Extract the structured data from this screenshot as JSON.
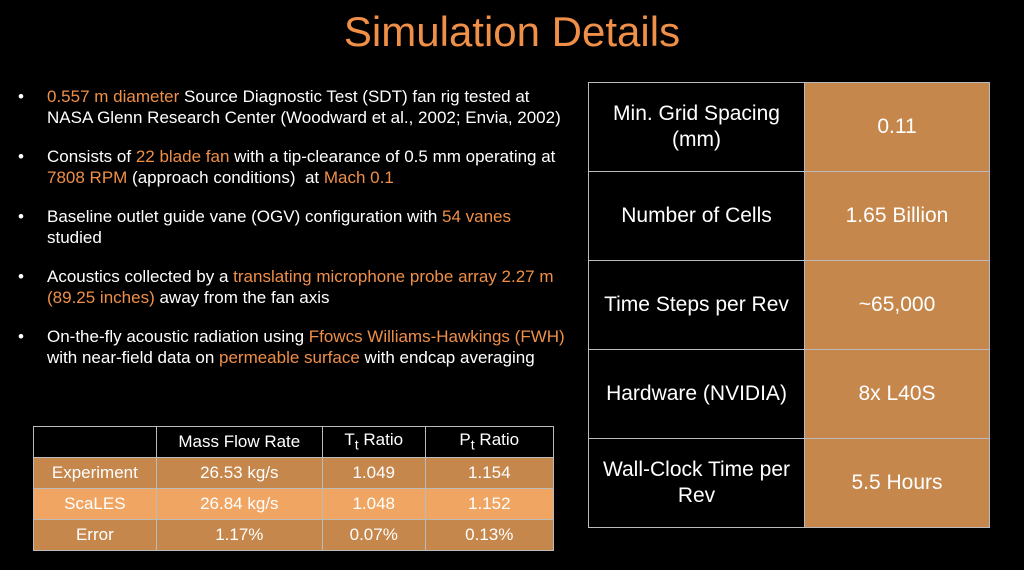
{
  "title": "Simulation Details",
  "bullets": [
    [
      {
        "text": "0.557 m diameter",
        "accent": true
      },
      {
        "text": " Source Diagnostic Test (SDT) fan rig tested at NASA Glenn Research Center (Woodward et al., 2002; Envia, 2002)",
        "accent": false
      }
    ],
    [
      {
        "text": "Consists of ",
        "accent": false
      },
      {
        "text": "22 blade fan",
        "accent": true
      },
      {
        "text": " with a tip-clearance of 0.5 mm operating at ",
        "accent": false
      },
      {
        "text": "7808 RPM",
        "accent": true
      },
      {
        "text": " (approach conditions)  at ",
        "accent": false
      },
      {
        "text": "Mach 0.1",
        "accent": true
      }
    ],
    [
      {
        "text": "Baseline outlet guide vane (OGV) configuration with ",
        "accent": false
      },
      {
        "text": "54 vanes",
        "accent": true
      },
      {
        "text": " studied",
        "accent": false
      }
    ],
    [
      {
        "text": "Acoustics collected by a ",
        "accent": false
      },
      {
        "text": "translating microphone probe array 2.27 m (89.25 inches)",
        "accent": true
      },
      {
        "text": " away from the fan axis",
        "accent": false
      }
    ],
    [
      {
        "text": "On-the-fly acoustic radiation using ",
        "accent": false
      },
      {
        "text": "Ffowcs Williams-Hawkings (FWH)",
        "accent": true
      },
      {
        "text": " with near-field data on ",
        "accent": false
      },
      {
        "text": "permeable surface",
        "accent": true
      },
      {
        "text": " with endcap averaging",
        "accent": false
      }
    ]
  ],
  "results_table": {
    "headers": [
      {
        "text": "Mass Flow Rate"
      },
      {
        "text": "T",
        "sub": "t",
        "after": " Ratio"
      },
      {
        "text": "P",
        "sub": "t",
        "after": " Ratio"
      }
    ],
    "rows": [
      {
        "label": "Experiment",
        "cells": [
          "26.53 kg/s",
          "1.049",
          "1.154"
        ]
      },
      {
        "label": "ScaLES",
        "cells": [
          "26.84 kg/s",
          "1.048",
          "1.152"
        ]
      },
      {
        "label": "Error",
        "cells": [
          "1.17%",
          "0.07%",
          "0.13%"
        ]
      }
    ]
  },
  "details_table": [
    {
      "label": "Min. Grid Spacing (mm)",
      "value": "0.11"
    },
    {
      "label": "Number of  Cells",
      "value": "1.65 Billion"
    },
    {
      "label": "Time Steps per Rev",
      "value": "~65,000"
    },
    {
      "label": "Hardware (NVIDIA)",
      "value": "8x L40S"
    },
    {
      "label": "Wall-Clock Time per Rev",
      "value": "5.5 Hours"
    }
  ]
}
